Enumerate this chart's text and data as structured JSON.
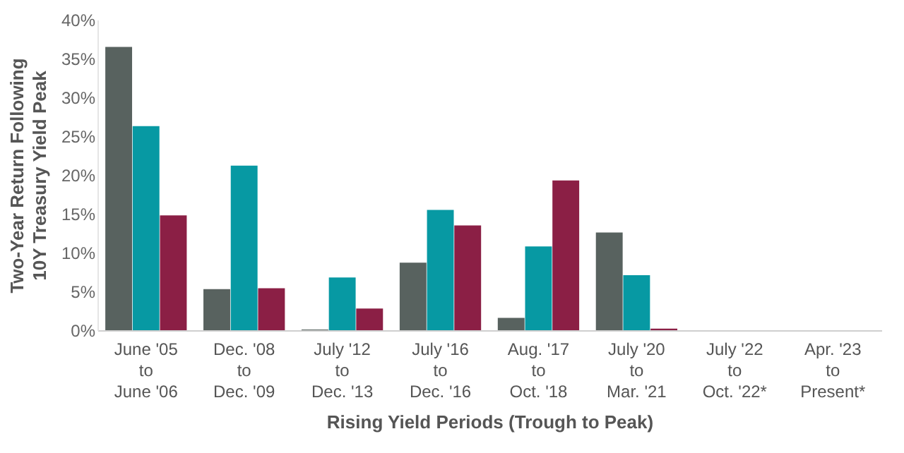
{
  "chart_data": {
    "type": "bar",
    "xlabel": "Rising Yield Periods (Trough to Peak)",
    "ylabel": "Two-Year Return Following\n10Y Treasury Yield Peak",
    "categories": [
      "June '05\nto\nJune '06",
      "Dec. '08\nto\nDec. '09",
      "July '12\nto\nDec. '13",
      "July '16\nto\nDec. '16",
      "Aug. '17\nto\nOct. '18",
      "July '20\nto\nMar. '21",
      "July '22\nto\nOct. '22*",
      "Apr. '23\nto\nPresent*"
    ],
    "series": [
      {
        "color": "#58625f",
        "values": [
          36.5,
          5.3,
          0.1,
          8.7,
          1.6,
          12.6,
          null,
          null
        ]
      },
      {
        "color": "#0799a3",
        "values": [
          26.3,
          21.2,
          6.8,
          15.5,
          10.8,
          7.1,
          null,
          null
        ]
      },
      {
        "color": "#8b1f45",
        "values": [
          14.8,
          5.4,
          2.8,
          13.5,
          19.3,
          0.2,
          null,
          null
        ]
      }
    ],
    "ylim": [
      0,
      40
    ],
    "yticks": [
      {
        "value": 0,
        "label": "0%"
      },
      {
        "value": 5,
        "label": "5%"
      },
      {
        "value": 10,
        "label": "10%"
      },
      {
        "value": 15,
        "label": "15%"
      },
      {
        "value": 20,
        "label": "20%"
      },
      {
        "value": 25,
        "label": "25%"
      },
      {
        "value": 30,
        "label": "30%"
      },
      {
        "value": 35,
        "label": "35%"
      },
      {
        "value": 40,
        "label": "40%"
      }
    ],
    "grid": false,
    "legend": false
  }
}
